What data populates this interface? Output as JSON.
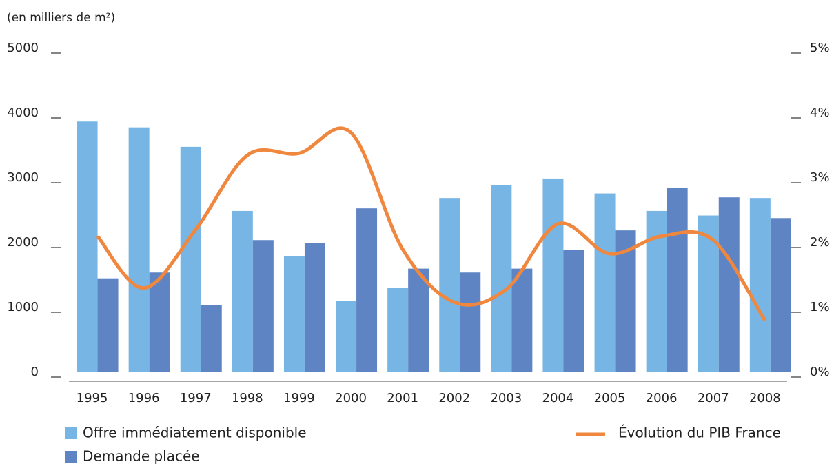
{
  "chart_data": {
    "type": "bar",
    "y_axis_label": "(en milliers de m²)",
    "categories": [
      "1995",
      "1996",
      "1997",
      "1998",
      "1999",
      "2000",
      "2001",
      "2002",
      "2003",
      "2004",
      "2005",
      "2006",
      "2007",
      "2008"
    ],
    "series": [
      {
        "name": "Offre immédiatement disponible",
        "color": "#77b5e4",
        "values": [
          3870,
          3780,
          3480,
          2490,
          1790,
          1100,
          1300,
          2690,
          2890,
          2990,
          2760,
          2490,
          2420,
          2690
        ]
      },
      {
        "name": "Demande placée",
        "color": "#5f84c4",
        "values": [
          1450,
          1540,
          1040,
          2040,
          1990,
          2530,
          1600,
          1540,
          1600,
          1890,
          2190,
          2850,
          2700,
          2380
        ]
      },
      {
        "name": "Évolution du PIB France",
        "color": "#f0873f",
        "type": "line",
        "axis": "y2",
        "values": [
          2.1,
          1.3,
          2.2,
          3.35,
          3.38,
          3.7,
          1.9,
          1.08,
          1.28,
          2.29,
          1.83,
          2.1,
          2.04,
          0.8
        ]
      }
    ],
    "ylim": [
      0,
      5000
    ],
    "yticks": [
      0,
      1000,
      2000,
      3000,
      4000,
      5000
    ],
    "y2lim": [
      0,
      5
    ],
    "y2ticks": [
      {
        "value": 0,
        "label": "0%"
      },
      {
        "value": 1,
        "label": "1%"
      },
      {
        "value": 2,
        "label": "2%"
      },
      {
        "value": 3,
        "label": "3%"
      },
      {
        "value": 4,
        "label": "4%"
      },
      {
        "value": 5,
        "label": "5%"
      }
    ]
  }
}
